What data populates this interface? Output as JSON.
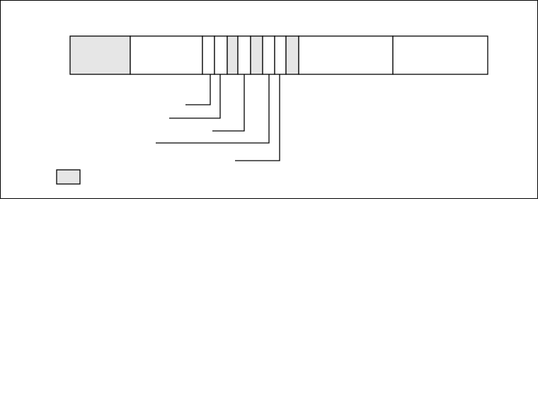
{
  "diagram": {
    "colors": {
      "fill_shaded": "#e6e6e6",
      "fill_plain": "#ffffff",
      "stroke": "#000000"
    },
    "segments": [
      {
        "shaded": true
      },
      {
        "shaded": false
      },
      {
        "shaded": false
      },
      {
        "shaded": false
      },
      {
        "shaded": true
      },
      {
        "shaded": false
      },
      {
        "shaded": true
      },
      {
        "shaded": false
      },
      {
        "shaded": false
      },
      {
        "shaded": true
      },
      {
        "shaded": false
      },
      {
        "shaded": false
      }
    ],
    "leader_line_count": 5,
    "legend": {
      "swatch": "shaded"
    }
  }
}
